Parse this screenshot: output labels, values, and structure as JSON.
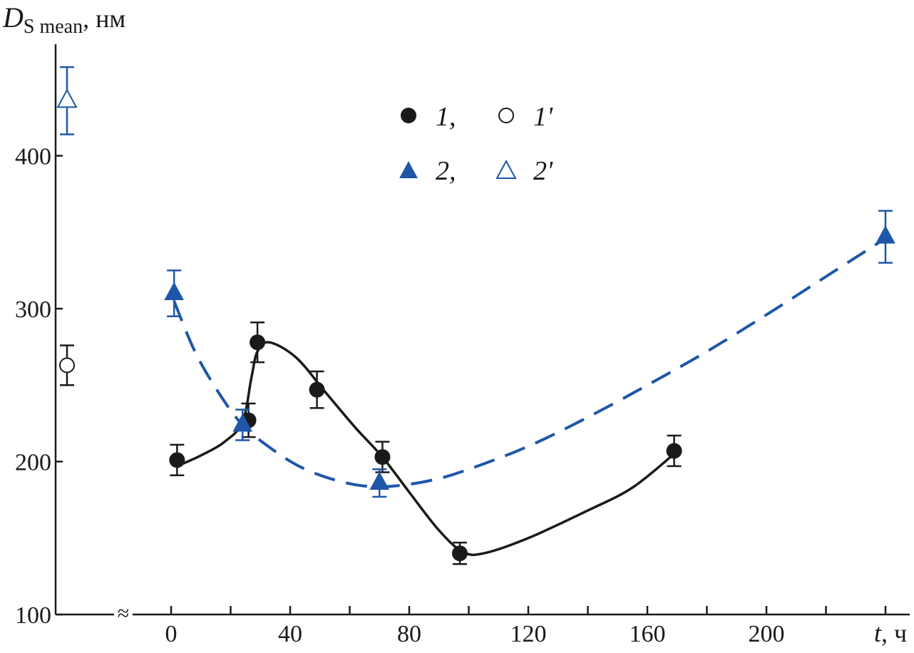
{
  "chart_data": {
    "type": "scatter",
    "y_axis": {
      "label_main": "D",
      "label_sub": "S mean",
      "label_unit": ", нм",
      "range": [
        100,
        460
      ],
      "ticks": [
        100,
        200,
        300,
        400
      ]
    },
    "x_axis": {
      "label_main": "t",
      "label_unit": ", ч",
      "range": [
        0,
        250
      ],
      "tick_labels": [
        0,
        40,
        80,
        120,
        160,
        200
      ],
      "minor_ticks": [
        0,
        20,
        40,
        60,
        80,
        100,
        120,
        140,
        160,
        180,
        200,
        220,
        240
      ],
      "break_marker": "≈"
    },
    "legend": {
      "position": "top-center",
      "items": [
        {
          "symbol": "filled-circle",
          "label": "1,"
        },
        {
          "symbol": "open-circle",
          "label": "1'"
        },
        {
          "symbol": "filled-triangle",
          "label": "2,"
        },
        {
          "symbol": "open-triangle",
          "label": "2'"
        }
      ]
    },
    "series": [
      {
        "id": "1",
        "marker": "filled-circle",
        "color": "#1a1a1a",
        "line": "solid",
        "points": [
          {
            "x": 2,
            "y": 201,
            "err": 10
          },
          {
            "x": 26,
            "y": 227,
            "err": 11
          },
          {
            "x": 29,
            "y": 278,
            "err": 13
          },
          {
            "x": 49,
            "y": 247,
            "err": 12
          },
          {
            "x": 71,
            "y": 203,
            "err": 10
          },
          {
            "x": 97,
            "y": 140,
            "err": 7
          },
          {
            "x": 169,
            "y": 207,
            "err": 10
          }
        ],
        "curve": [
          [
            2,
            197
          ],
          [
            10,
            204
          ],
          [
            18,
            213
          ],
          [
            24,
            226
          ],
          [
            27,
            255
          ],
          [
            29,
            272
          ],
          [
            33,
            278
          ],
          [
            42,
            268
          ],
          [
            52,
            245
          ],
          [
            62,
            222
          ],
          [
            71,
            203
          ],
          [
            80,
            180
          ],
          [
            90,
            155
          ],
          [
            98,
            141
          ],
          [
            105,
            140
          ],
          [
            120,
            150
          ],
          [
            140,
            168
          ],
          [
            155,
            183
          ],
          [
            169,
            205
          ]
        ]
      },
      {
        "id": "1'",
        "marker": "open-circle",
        "color": "#1a1a1a",
        "points": [
          {
            "x_position": "before-break",
            "y": 263,
            "err": 13
          }
        ]
      },
      {
        "id": "2",
        "marker": "filled-triangle",
        "color": "#1f57a8",
        "line": "dashed",
        "points": [
          {
            "x": 1,
            "y": 310,
            "err": 15
          },
          {
            "x": 24,
            "y": 224,
            "err": 10
          },
          {
            "x": 70,
            "y": 186,
            "err": 9
          },
          {
            "x": 240,
            "y": 347,
            "err": 17
          }
        ],
        "curve": [
          [
            1,
            305
          ],
          [
            8,
            272
          ],
          [
            16,
            245
          ],
          [
            24,
            224
          ],
          [
            34,
            208
          ],
          [
            44,
            196
          ],
          [
            55,
            188
          ],
          [
            65,
            184
          ],
          [
            75,
            184
          ],
          [
            88,
            188
          ],
          [
            100,
            195
          ],
          [
            120,
            210
          ],
          [
            140,
            229
          ],
          [
            160,
            250
          ],
          [
            180,
            272
          ],
          [
            200,
            296
          ],
          [
            220,
            321
          ],
          [
            240,
            346
          ]
        ]
      },
      {
        "id": "2'",
        "marker": "open-triangle",
        "color": "#1f57a8",
        "points": [
          {
            "x_position": "before-break",
            "y": 436,
            "err": 22
          }
        ]
      }
    ]
  }
}
